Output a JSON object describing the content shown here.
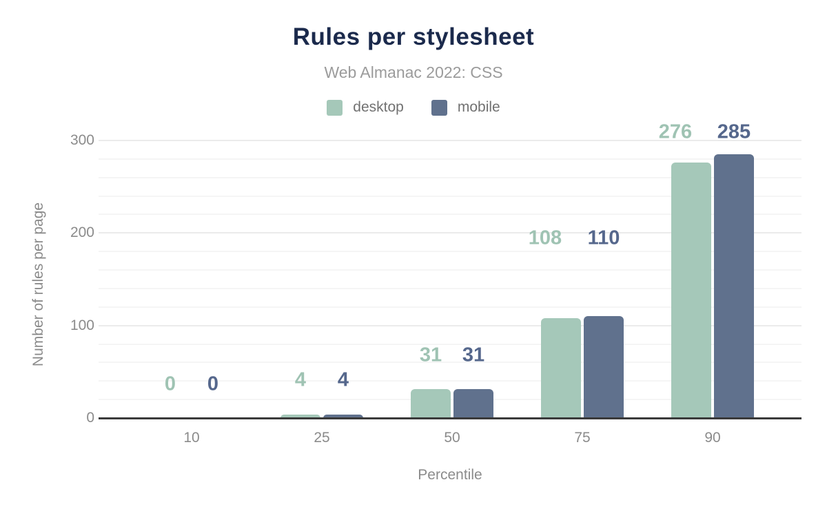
{
  "chart_data": {
    "type": "bar",
    "title": "Rules per stylesheet",
    "subtitle": "Web Almanac 2022: CSS",
    "xlabel": "Percentile",
    "ylabel": "Number of rules per page",
    "categories": [
      "10",
      "25",
      "50",
      "75",
      "90"
    ],
    "series": [
      {
        "name": "desktop",
        "color": "#a5c8b9",
        "label_color": "#9fc3b3",
        "values": [
          0,
          4,
          31,
          108,
          276
        ]
      },
      {
        "name": "mobile",
        "color": "#60718d",
        "label_color": "#55678c",
        "values": [
          0,
          4,
          31,
          110,
          285
        ]
      }
    ],
    "data_labels": {
      "desktop": [
        "0",
        "4",
        "31",
        "108",
        "276"
      ],
      "mobile": [
        "0",
        "4",
        "31",
        "110",
        "285"
      ]
    },
    "ylim": [
      0,
      300
    ],
    "yticks": [
      "0",
      "100",
      "200",
      "300"
    ],
    "minor_grid_step": 20,
    "grid": true,
    "legend_position": "top"
  },
  "colors": {
    "title_text": "#1b2a4c",
    "subtitle_text": "#9b9b9b",
    "legend_text": "#717171",
    "axis_text": "#8b8b8b",
    "axis_line": "#3a3a3a",
    "major_gridline": "#ebebeb",
    "minor_gridline": "#f5f5f5",
    "background": "#ffffff"
  }
}
